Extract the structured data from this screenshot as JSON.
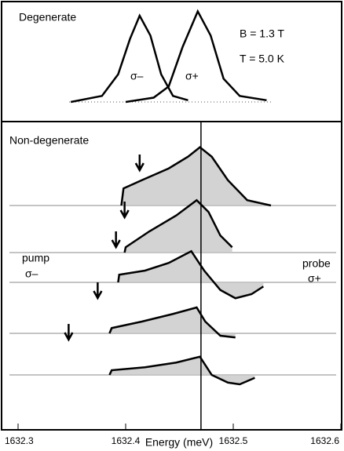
{
  "chart_data": [
    {
      "type": "line",
      "title": "Degenerate",
      "annotations": [
        "B = 1.3 T",
        "T = 5.0 K"
      ],
      "xlim": [
        1632.3,
        1632.6
      ],
      "series": [
        {
          "name": "σ–",
          "color": "#000000",
          "x": [
            1632.349,
            1632.378,
            1632.393,
            1632.404,
            1632.413,
            1632.423,
            1632.433,
            1632.444,
            1632.458
          ],
          "values": [
            0,
            0.07,
            0.32,
            0.73,
            1.0,
            0.77,
            0.32,
            0.07,
            0.02
          ]
        },
        {
          "name": "σ+",
          "color": "#000000",
          "x": [
            1632.4,
            1632.426,
            1632.44,
            1632.453,
            1632.467,
            1632.479,
            1632.491,
            1632.506,
            1632.531
          ],
          "values": [
            0,
            0.05,
            0.18,
            0.64,
            1.05,
            0.77,
            0.27,
            0.07,
            0.02
          ]
        }
      ]
    },
    {
      "type": "line",
      "title": "Non-degenerate",
      "xlabel": "Energy (meV)",
      "pump_label": [
        "pump",
        "σ–"
      ],
      "probe_label": [
        "probe",
        "σ+"
      ],
      "xlim": [
        1632.3,
        1632.6
      ],
      "xticks": [
        1632.3,
        1632.4,
        1632.5,
        1632.6
      ],
      "vline": 1632.47,
      "pump_energies": [
        1632.413,
        1632.399,
        1632.391,
        1632.374,
        1632.347
      ],
      "fill": "#c8c8c8",
      "series": [
        {
          "color": "#000000",
          "x": [
            1632.396,
            1632.398,
            1632.415,
            1632.44,
            1632.458,
            1632.469,
            1632.48,
            1632.495,
            1632.513,
            1632.535
          ],
          "values": [
            0,
            0.29,
            0.43,
            0.63,
            0.83,
            0.99,
            0.83,
            0.43,
            0.09,
            0
          ]
        },
        {
          "color": "#000000",
          "x": [
            1632.399,
            1632.4,
            1632.422,
            1632.447,
            1632.466,
            1632.477,
            1632.488,
            1632.499
          ],
          "values": [
            0,
            0.09,
            0.36,
            0.63,
            0.89,
            0.69,
            0.29,
            0.09
          ]
        },
        {
          "color": "#000000",
          "x": [
            1632.393,
            1632.394,
            1632.418,
            1632.44,
            1632.461,
            1632.473,
            1632.488,
            1632.502,
            1632.517,
            1632.528
          ],
          "values": [
            0,
            0.13,
            0.2,
            0.33,
            0.53,
            0.2,
            -0.13,
            -0.27,
            -0.2,
            -0.07
          ]
        },
        {
          "color": "#000000",
          "x": [
            1632.385,
            1632.387,
            1632.415,
            1632.444,
            1632.466,
            1632.474,
            1632.488,
            1632.502
          ],
          "values": [
            0,
            0.09,
            0.2,
            0.33,
            0.44,
            0.2,
            -0.04,
            -0.07
          ]
        },
        {
          "color": "#000000",
          "x": [
            1632.385,
            1632.387,
            1632.418,
            1632.447,
            1632.469,
            1632.48,
            1632.495,
            1632.506,
            1632.52
          ],
          "values": [
            0,
            0.08,
            0.13,
            0.21,
            0.31,
            0,
            -0.13,
            -0.16,
            -0.05
          ]
        }
      ]
    }
  ]
}
